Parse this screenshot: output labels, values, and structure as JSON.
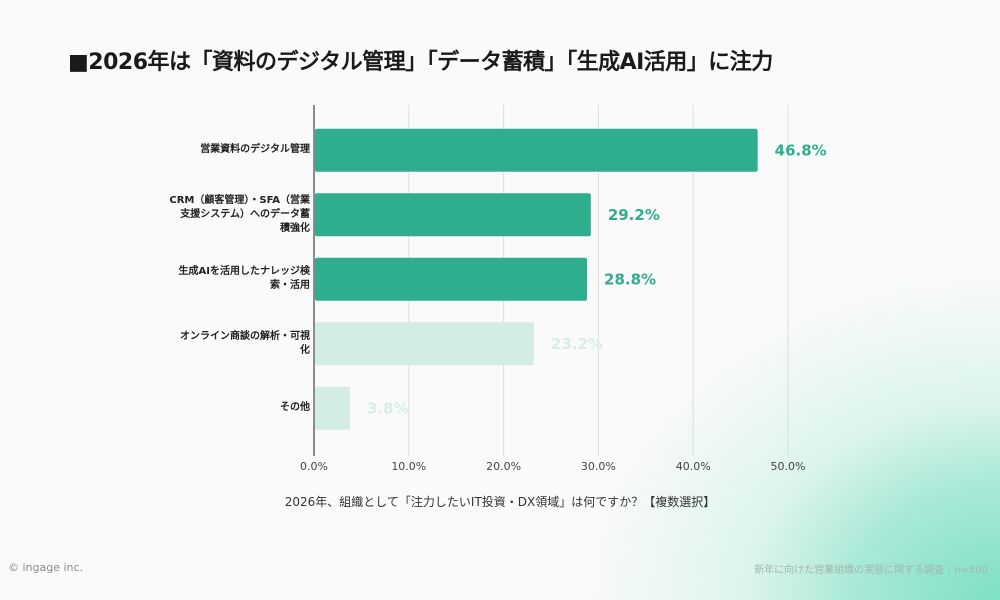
{
  "title": "■2026年は「資料のデジタル管理」「データ蓄積」「生成AI活用」に注力",
  "question": "2026年、組織として「注力したいIT投資・DX領域」は何ですか？【複数選択】",
  "footer": {
    "copyright": "© ingage inc.",
    "source": "新年に向けた営業組織の実態に関する調査｜n=500"
  },
  "colors": {
    "highlight": "#2fae8f",
    "muted": "#d3ede5",
    "highlight_label": "#2fae8f",
    "muted_label": "#d6eee6",
    "axis": "#444444",
    "grid": "#dddddd"
  },
  "chart_data": {
    "type": "bar",
    "orientation": "horizontal",
    "title": "■2026年は「資料のデジタル管理」「データ蓄積」「生成AI活用」に注力",
    "xlabel": "2026年、組織として「注力したいIT投資・DX領域」は何ですか？【複数選択】",
    "ylabel": "",
    "categories": [
      "営業資料のデジタル管理",
      "CRM（顧客管理）・SFA（営業支援システム）へのデータ蓄積強化",
      "生成AIを活用したナレッジ検索・活用",
      "オンライン商談の解析・可視化",
      "その他"
    ],
    "category_lines": [
      [
        "営業資料のデジタル管理"
      ],
      [
        "CRM（顧客管理）・SFA（営業",
        "支援システム）へのデータ蓄",
        "積強化"
      ],
      [
        "生成AIを活用したナレッジ検",
        "索・活用"
      ],
      [
        "オンライン商談の解析・可視",
        "化"
      ],
      [
        "その他"
      ]
    ],
    "values": [
      46.8,
      29.2,
      28.8,
      23.2,
      3.8
    ],
    "value_labels": [
      "46.8%",
      "29.2%",
      "28.8%",
      "23.2%",
      "3.8%"
    ],
    "highlighted": [
      true,
      true,
      true,
      false,
      false
    ],
    "xlim": [
      0,
      50
    ],
    "xticks": [
      0,
      10,
      20,
      30,
      40,
      50
    ],
    "xtick_labels": [
      "0.0%",
      "10.0%",
      "20.0%",
      "30.0%",
      "40.0%",
      "50.0%"
    ],
    "grid": true,
    "legend": "none"
  }
}
